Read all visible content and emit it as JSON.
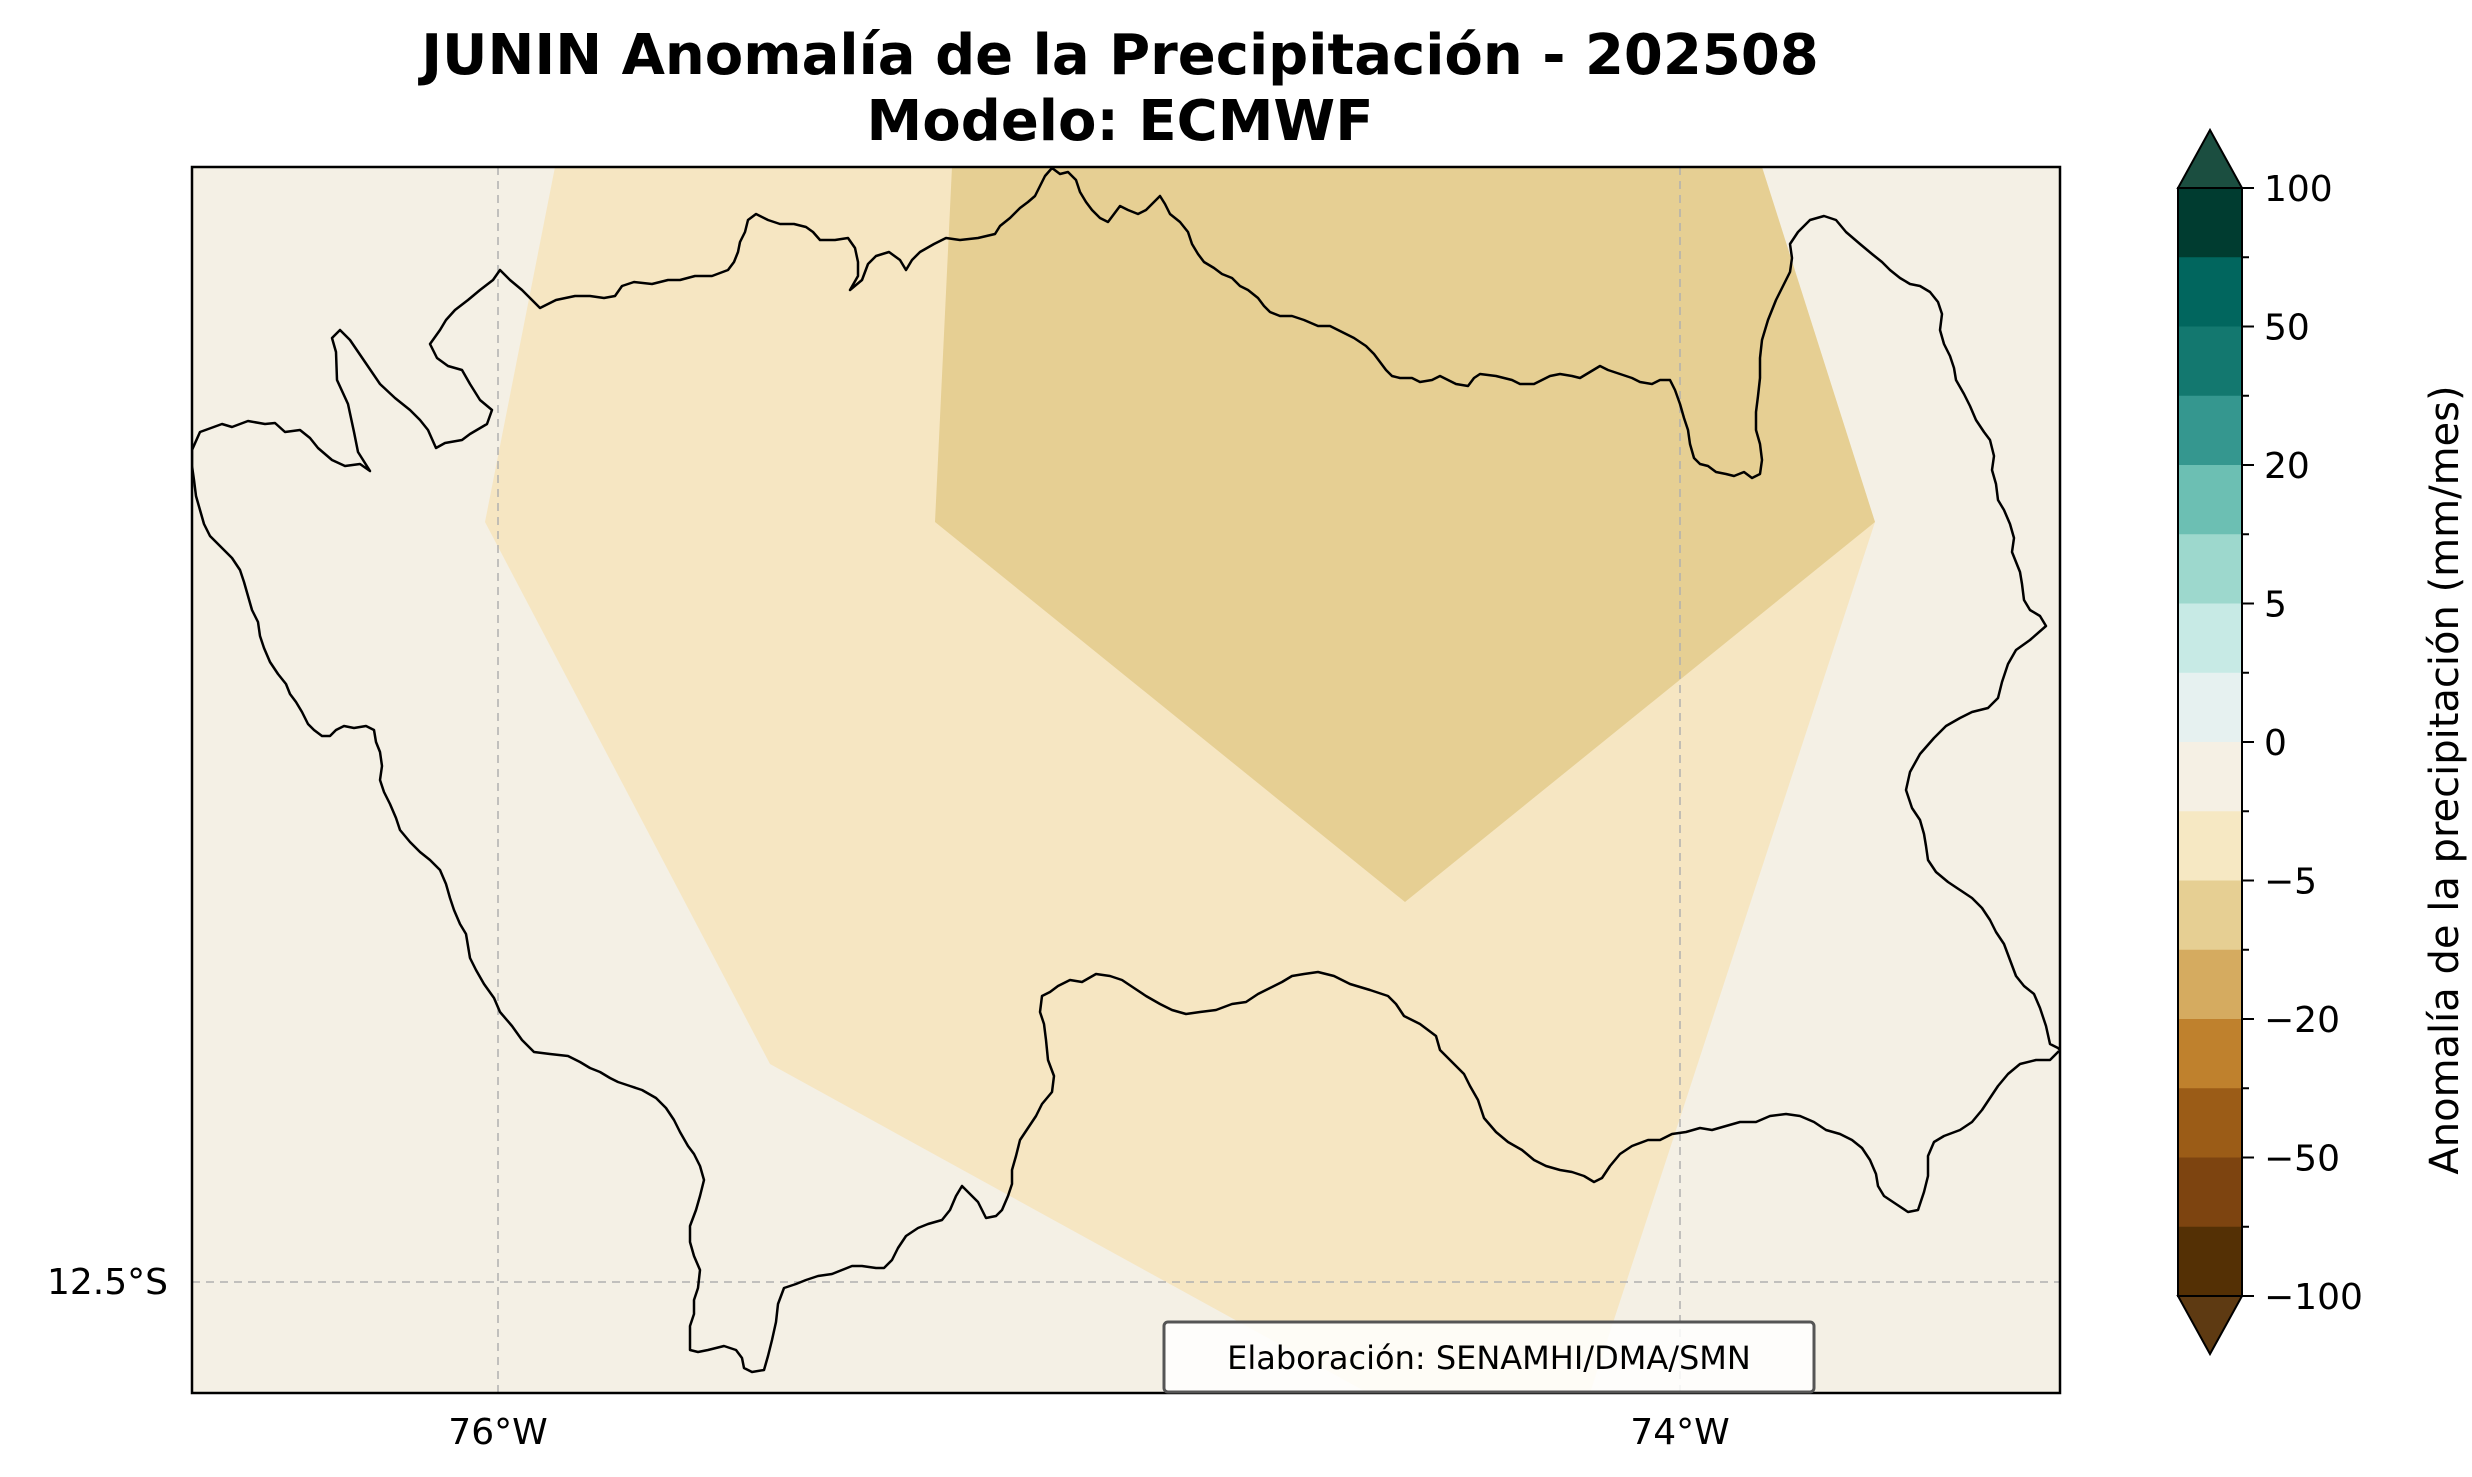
{
  "title_line1": "JUNIN Anomalía de la Precipitación - 202508",
  "title_line2": "Modelo: ECMWF",
  "x_ticks": [
    "76°W",
    "74°W"
  ],
  "y_ticks": [
    "12.5°S"
  ],
  "credit": "Elaboración: SENAMHI/DMA/SMN",
  "colorbar": {
    "label": "Anomalía de la precipitación (mm/mes)",
    "tick_labels": [
      "100",
      "50",
      "20",
      "5",
      "0",
      "−5",
      "−20",
      "−50",
      "−100"
    ],
    "colors_top_to_bottom": [
      "#003c30",
      "#01665e",
      "#13786f",
      "#35978f",
      "#6cbfb3",
      "#9dd8cd",
      "#c7eae5",
      "#e6f1f0",
      "#f5f0e4",
      "#f6e8c3",
      "#e6cf93",
      "#d5ab60",
      "#bf812d",
      "#9b5c17",
      "#7d4410",
      "#543005"
    ],
    "extend_max_color": "#1b4e40",
    "extend_min_color": "#5e3a12"
  },
  "map": {
    "background_color": "#f4f0e5",
    "zone_colors": {
      "-5_to_0": "#f6e6c2",
      "-10_to_-5": "#e6cf93"
    },
    "lon_range": [
      -76.52,
      -73.36
    ],
    "lat_range": [
      -12.7,
      -10.62
    ]
  }
}
